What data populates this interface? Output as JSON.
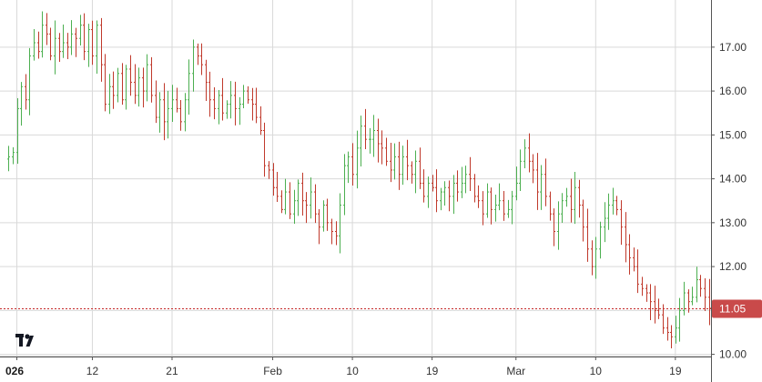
{
  "chart_data": {
    "type": "ohlc",
    "x_tick_labels": [
      "026",
      "12",
      "21",
      "Feb",
      "10",
      "19",
      "Mar",
      "10",
      "19"
    ],
    "x_tick_indices": [
      2,
      20,
      39,
      63,
      82,
      101,
      121,
      140,
      159
    ],
    "y_ticks": [
      "10.00",
      "11.00",
      "12.00",
      "13.00",
      "14.00",
      "15.00",
      "16.00",
      "17.00"
    ],
    "ylim": [
      9.95,
      17.95
    ],
    "last_price": 11.05,
    "last_price_label": "11.05",
    "grid": true,
    "colors": {
      "up": "#4caf50",
      "down": "#c0392b",
      "grid": "#d9d9d9",
      "axis": "#555555",
      "price_line": "#c62828",
      "price_tag": "#c94a4a"
    },
    "close": [
      14.5,
      14.6,
      15.6,
      16.1,
      15.8,
      16.8,
      17.1,
      16.9,
      17.5,
      17.3,
      16.8,
      17.2,
      16.9,
      17.1,
      17.0,
      17.3,
      17.2,
      17.5,
      16.9,
      17.4,
      16.8,
      17.5,
      16.6,
      15.7,
      16.1,
      15.9,
      16.4,
      15.8,
      16.5,
      16.2,
      15.9,
      16.3,
      16.0,
      16.6,
      15.9,
      15.4,
      15.8,
      15.3,
      15.6,
      15.8,
      15.6,
      15.3,
      15.8,
      16.4,
      17.0,
      16.8,
      16.6,
      16.2,
      15.8,
      15.6,
      15.9,
      15.5,
      15.7,
      15.9,
      15.6,
      15.7,
      16.0,
      15.8,
      15.7,
      15.4,
      15.1,
      14.3,
      14.2,
      13.8,
      13.6,
      13.3,
      13.7,
      13.2,
      13.5,
      13.9,
      13.5,
      13.4,
      13.7,
      13.2,
      12.9,
      13.4,
      13.0,
      12.8,
      12.7,
      13.4,
      14.3,
      14.5,
      14.1,
      14.7,
      15.2,
      14.9,
      14.9,
      15.1,
      14.8,
      14.7,
      14.4,
      14.2,
      14.5,
      14.1,
      14.5,
      14.3,
      14.1,
      14.4,
      13.9,
      13.6,
      13.9,
      13.8,
      13.5,
      13.7,
      13.8,
      13.6,
      13.9,
      13.7,
      13.9,
      14.1,
      14.0,
      13.6,
      13.5,
      13.2,
      13.7,
      13.3,
      13.4,
      13.5,
      13.2,
      13.3,
      13.6,
      13.9,
      14.4,
      14.7,
      14.4,
      14.2,
      13.7,
      14.1,
      13.6,
      13.2,
      12.8,
      13.2,
      13.5,
      13.6,
      13.3,
      13.8,
      13.4,
      12.9,
      12.4,
      12.0,
      12.4,
      12.9,
      13.1,
      13.4,
      13.5,
      13.3,
      12.9,
      12.5,
      12.2,
      12.0,
      11.6,
      11.5,
      11.4,
      11.2,
      11.0,
      10.9,
      10.6,
      10.5,
      10.4,
      10.6,
      11.0,
      11.4,
      11.2,
      11.3,
      11.7,
      11.5,
      11.3,
      11.05
    ]
  }
}
